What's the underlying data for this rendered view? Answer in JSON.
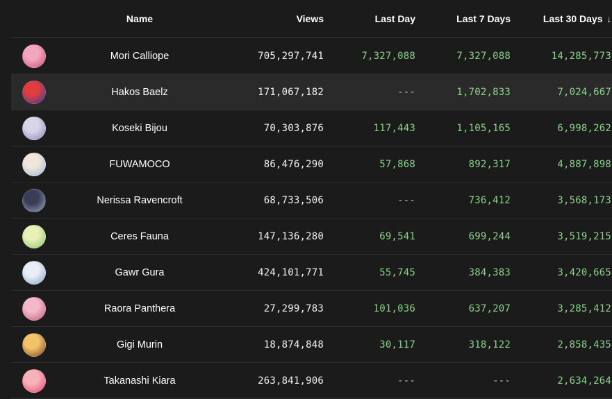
{
  "table": {
    "headers": {
      "name": "Name",
      "views": "Views",
      "last_day": "Last Day",
      "last_7": "Last 7 Days",
      "last_30": "Last 30 Days",
      "sort_icon": "arrow-down-icon"
    },
    "rows": [
      {
        "name": "Mori Calliope",
        "views": "705,297,741",
        "last_day": "7,327,088",
        "last_7": "7,327,088",
        "last_30": "14,285,773",
        "avatar_colors": [
          "#f3a6c0",
          "#c9536f"
        ]
      },
      {
        "name": "Hakos Baelz",
        "views": "171,067,182",
        "last_day": "---",
        "last_7": "1,702,833",
        "last_30": "7,024,667",
        "avatar_colors": [
          "#e23d3d",
          "#2b3f9c"
        ]
      },
      {
        "name": "Koseki Bijou",
        "views": "70,303,876",
        "last_day": "117,443",
        "last_7": "1,105,165",
        "last_30": "6,998,262",
        "avatar_colors": [
          "#d9d4e8",
          "#8e88b5"
        ]
      },
      {
        "name": "FUWAMOCO",
        "views": "86,476,290",
        "last_day": "57,868",
        "last_7": "892,317",
        "last_30": "4,887,898",
        "avatar_colors": [
          "#efe7d9",
          "#9fb6d6"
        ]
      },
      {
        "name": "Nerissa Ravencroft",
        "views": "68,733,506",
        "last_day": "---",
        "last_7": "736,412",
        "last_30": "3,568,173",
        "avatar_colors": [
          "#3a3d55",
          "#9aa3c4"
        ]
      },
      {
        "name": "Ceres Fauna",
        "views": "147,136,280",
        "last_day": "69,541",
        "last_7": "699,244",
        "last_30": "3,519,215",
        "avatar_colors": [
          "#e8f0b8",
          "#8fc36b"
        ]
      },
      {
        "name": "Gawr Gura",
        "views": "424,101,771",
        "last_day": "55,745",
        "last_7": "384,383",
        "last_30": "3,420,665",
        "avatar_colors": [
          "#e9eef5",
          "#8aa6c7"
        ]
      },
      {
        "name": "Raora Panthera",
        "views": "27,299,783",
        "last_day": "101,036",
        "last_7": "637,207",
        "last_30": "3,285,412",
        "avatar_colors": [
          "#f3b9c9",
          "#c45d7c"
        ]
      },
      {
        "name": "Gigi Murin",
        "views": "18,874,848",
        "last_day": "30,117",
        "last_7": "318,122",
        "last_30": "2,858,435",
        "avatar_colors": [
          "#f3c36b",
          "#7b4a2a"
        ]
      },
      {
        "name": "Takanashi Kiara",
        "views": "263,841,906",
        "last_day": "---",
        "last_7": "---",
        "last_30": "2,634,264",
        "avatar_colors": [
          "#f7b1b8",
          "#e2476b"
        ]
      }
    ]
  },
  "colors": {
    "background": "#1b1b1b",
    "highlight_row": "#2a2a2a",
    "positive_number": "#8bd38b",
    "primary_text": "#ffffff"
  }
}
